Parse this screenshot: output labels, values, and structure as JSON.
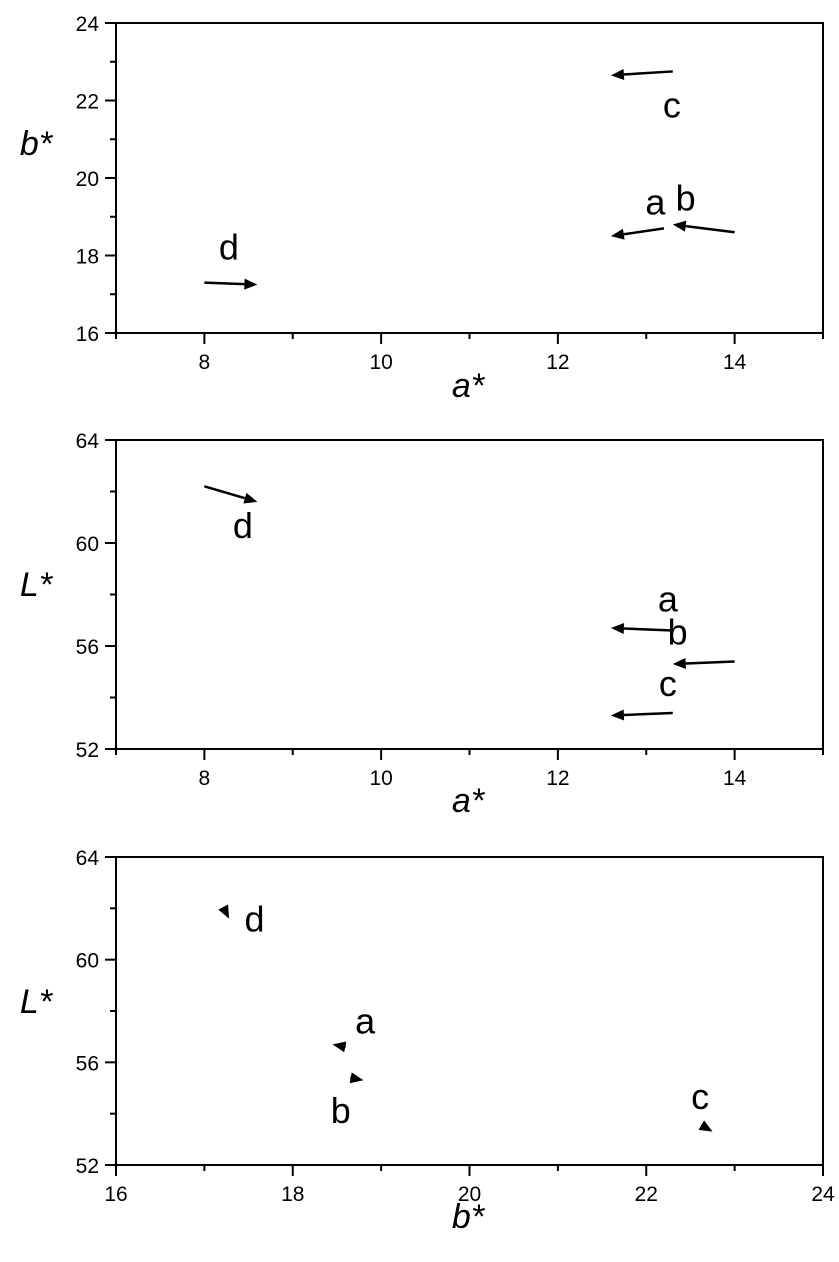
{
  "chart_data": [
    {
      "type": "scatter",
      "xlabel": "a*",
      "ylabel": "b*",
      "xlim": [
        7,
        15
      ],
      "ylim": [
        16,
        24
      ],
      "xticks": [
        8,
        10,
        12,
        14
      ],
      "yticks": [
        16,
        18,
        20,
        22,
        24
      ],
      "grid": false,
      "series": [
        {
          "name": "a",
          "from": [
            13.2,
            18.7
          ],
          "to": [
            12.6,
            18.5
          ]
        },
        {
          "name": "b",
          "from": [
            14.0,
            18.6
          ],
          "to": [
            13.3,
            18.8
          ]
        },
        {
          "name": "c",
          "from": [
            13.3,
            22.75
          ],
          "to": [
            12.6,
            22.65
          ]
        },
        {
          "name": "d",
          "from": [
            8.0,
            17.3
          ],
          "to": [
            8.6,
            17.25
          ]
        }
      ]
    },
    {
      "type": "scatter",
      "xlabel": "a*",
      "ylabel": "L*",
      "xlim": [
        7,
        15
      ],
      "ylim": [
        52,
        64
      ],
      "xticks": [
        8,
        10,
        12,
        14
      ],
      "yticks": [
        52,
        56,
        60,
        64
      ],
      "grid": false,
      "series": [
        {
          "name": "a",
          "from": [
            13.3,
            56.6
          ],
          "to": [
            12.6,
            56.7
          ]
        },
        {
          "name": "b",
          "from": [
            14.0,
            55.4
          ],
          "to": [
            13.3,
            55.3
          ]
        },
        {
          "name": "c",
          "from": [
            13.3,
            53.4
          ],
          "to": [
            12.6,
            53.3
          ]
        },
        {
          "name": "d",
          "from": [
            8.0,
            62.2
          ],
          "to": [
            8.6,
            61.6
          ]
        }
      ]
    },
    {
      "type": "scatter",
      "xlabel": "b*",
      "ylabel": "L*",
      "xlim": [
        16,
        24
      ],
      "ylim": [
        52,
        64
      ],
      "xticks": [
        16,
        18,
        20,
        22,
        24
      ],
      "yticks": [
        52,
        56,
        60,
        64
      ],
      "grid": false,
      "series": [
        {
          "name": "a",
          "from": [
            18.6,
            56.6
          ],
          "to": [
            18.45,
            56.7
          ]
        },
        {
          "name": "b",
          "from": [
            18.65,
            55.4
          ],
          "to": [
            18.8,
            55.3
          ]
        },
        {
          "name": "c",
          "from": [
            22.65,
            53.5
          ],
          "to": [
            22.75,
            53.3
          ]
        },
        {
          "name": "d",
          "from": [
            17.22,
            62.0
          ],
          "to": [
            17.28,
            61.6
          ]
        }
      ]
    }
  ]
}
